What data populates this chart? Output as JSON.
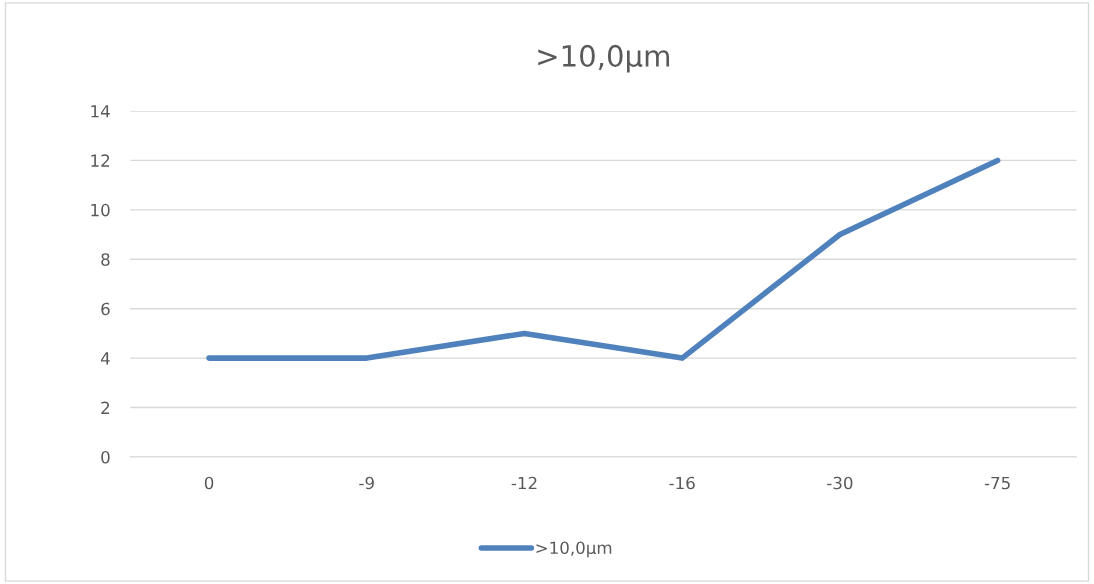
{
  "chart_data": {
    "type": "line",
    "title": ">10,0µm",
    "categories": [
      "0",
      "-9",
      "-12",
      "-16",
      "-30",
      "-75"
    ],
    "series": [
      {
        "name": ">10,0µm",
        "color": "#4f81bd",
        "values": [
          4,
          4,
          5,
          4,
          9,
          12
        ]
      }
    ],
    "ylim": [
      0,
      14
    ],
    "yticks": [
      0,
      2,
      4,
      6,
      8,
      10,
      12,
      14
    ],
    "grid": "y",
    "legend": "bottom",
    "marker": "none",
    "line_style": "solid"
  }
}
